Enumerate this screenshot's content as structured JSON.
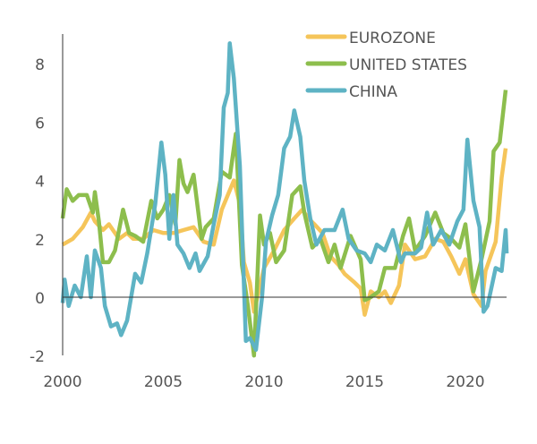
{
  "chart_data": {
    "type": "line",
    "title": "",
    "xlabel": "",
    "ylabel": "",
    "xlim": [
      2000,
      2022.5
    ],
    "ylim": [
      -2,
      9
    ],
    "x_ticks": [
      2000,
      2005,
      2010,
      2015,
      2020
    ],
    "x_tick_labels": [
      "2000",
      "2005",
      "2010",
      "2015",
      "2020"
    ],
    "y_ticks": [
      -2,
      0,
      2,
      4,
      6,
      8
    ],
    "y_tick_labels": [
      "-2",
      "0",
      "2",
      "4",
      "6",
      "8"
    ],
    "grid": false,
    "legend_position": "top-right",
    "series": [
      {
        "name": "EUROZONE",
        "color": "#F5C55A",
        "points": [
          [
            2000,
            1.8
          ],
          [
            2000.5,
            2.0
          ],
          [
            2001,
            2.4
          ],
          [
            2001.4,
            2.9
          ],
          [
            2001.6,
            2.6
          ],
          [
            2002,
            2.3
          ],
          [
            2002.3,
            2.5
          ],
          [
            2002.8,
            2.0
          ],
          [
            2003.2,
            2.2
          ],
          [
            2003.5,
            2.0
          ],
          [
            2004,
            2.0
          ],
          [
            2004.5,
            2.3
          ],
          [
            2005,
            2.2
          ],
          [
            2005.5,
            2.2
          ],
          [
            2006,
            2.3
          ],
          [
            2006.5,
            2.4
          ],
          [
            2007,
            1.9
          ],
          [
            2007.5,
            1.8
          ],
          [
            2007.9,
            3.0
          ],
          [
            2008.5,
            4.0
          ],
          [
            2008.8,
            3.2
          ],
          [
            2009,
            1.2
          ],
          [
            2009.3,
            0.5
          ],
          [
            2009.5,
            -0.5
          ],
          [
            2009.8,
            0.4
          ],
          [
            2010,
            1.0
          ],
          [
            2010.5,
            1.6
          ],
          [
            2011,
            2.3
          ],
          [
            2011.5,
            2.7
          ],
          [
            2011.9,
            3.0
          ],
          [
            2012.2,
            2.7
          ],
          [
            2012.5,
            2.5
          ],
          [
            2012.9,
            2.2
          ],
          [
            2013.3,
            1.4
          ],
          [
            2013.7,
            1.1
          ],
          [
            2014,
            0.8
          ],
          [
            2014.5,
            0.5
          ],
          [
            2014.8,
            0.3
          ],
          [
            2015,
            -0.6
          ],
          [
            2015.3,
            0.2
          ],
          [
            2015.7,
            0.0
          ],
          [
            2016,
            0.2
          ],
          [
            2016.3,
            -0.2
          ],
          [
            2016.7,
            0.4
          ],
          [
            2017,
            1.8
          ],
          [
            2017.5,
            1.3
          ],
          [
            2018,
            1.4
          ],
          [
            2018.5,
            2.0
          ],
          [
            2018.9,
            1.9
          ],
          [
            2019.3,
            1.4
          ],
          [
            2019.7,
            0.8
          ],
          [
            2020,
            1.3
          ],
          [
            2020.4,
            0.1
          ],
          [
            2020.8,
            -0.3
          ],
          [
            2021,
            0.9
          ],
          [
            2021.5,
            1.9
          ],
          [
            2021.8,
            4.1
          ],
          [
            2022,
            5.1
          ]
        ]
      },
      {
        "name": "UNITED STATES",
        "color": "#8DBE4D",
        "points": [
          [
            2000,
            2.7
          ],
          [
            2000.2,
            3.7
          ],
          [
            2000.5,
            3.3
          ],
          [
            2000.8,
            3.5
          ],
          [
            2001.2,
            3.5
          ],
          [
            2001.5,
            2.9
          ],
          [
            2001.6,
            3.6
          ],
          [
            2001.8,
            2.6
          ],
          [
            2002,
            1.2
          ],
          [
            2002.3,
            1.2
          ],
          [
            2002.6,
            1.6
          ],
          [
            2003,
            3.0
          ],
          [
            2003.3,
            2.2
          ],
          [
            2003.6,
            2.1
          ],
          [
            2004,
            1.9
          ],
          [
            2004.4,
            3.3
          ],
          [
            2004.7,
            2.7
          ],
          [
            2005,
            3.0
          ],
          [
            2005.3,
            3.5
          ],
          [
            2005.6,
            2.5
          ],
          [
            2005.8,
            4.7
          ],
          [
            2006,
            3.9
          ],
          [
            2006.2,
            3.6
          ],
          [
            2006.5,
            4.2
          ],
          [
            2006.9,
            2.0
          ],
          [
            2007.1,
            2.4
          ],
          [
            2007.5,
            2.7
          ],
          [
            2007.9,
            4.3
          ],
          [
            2008.3,
            4.1
          ],
          [
            2008.6,
            5.6
          ],
          [
            2008.9,
            1.1
          ],
          [
            2009.2,
            -0.3
          ],
          [
            2009.5,
            -2.0
          ],
          [
            2009.8,
            2.8
          ],
          [
            2010,
            1.8
          ],
          [
            2010.3,
            2.2
          ],
          [
            2010.6,
            1.2
          ],
          [
            2011,
            1.6
          ],
          [
            2011.4,
            3.5
          ],
          [
            2011.8,
            3.8
          ],
          [
            2012,
            2.9
          ],
          [
            2012.4,
            1.7
          ],
          [
            2012.8,
            2.0
          ],
          [
            2013.2,
            1.2
          ],
          [
            2013.5,
            1.8
          ],
          [
            2013.8,
            1.0
          ],
          [
            2014.3,
            2.1
          ],
          [
            2014.8,
            1.3
          ],
          [
            2015,
            -0.1
          ],
          [
            2015.3,
            0.0
          ],
          [
            2015.7,
            0.2
          ],
          [
            2016,
            1.0
          ],
          [
            2016.5,
            1.0
          ],
          [
            2016.9,
            2.1
          ],
          [
            2017.2,
            2.7
          ],
          [
            2017.5,
            1.6
          ],
          [
            2018,
            2.1
          ],
          [
            2018.5,
            2.9
          ],
          [
            2018.9,
            2.2
          ],
          [
            2019.3,
            2.0
          ],
          [
            2019.7,
            1.7
          ],
          [
            2020,
            2.5
          ],
          [
            2020.4,
            0.2
          ],
          [
            2020.8,
            1.3
          ],
          [
            2021.2,
            2.6
          ],
          [
            2021.4,
            5.0
          ],
          [
            2021.7,
            5.3
          ],
          [
            2022,
            7.1
          ]
        ]
      },
      {
        "name": "CHINA",
        "color": "#5EB3C4",
        "points": [
          [
            2000,
            -0.2
          ],
          [
            2000.1,
            0.6
          ],
          [
            2000.3,
            -0.3
          ],
          [
            2000.6,
            0.4
          ],
          [
            2000.9,
            0.0
          ],
          [
            2001.2,
            1.4
          ],
          [
            2001.4,
            0.0
          ],
          [
            2001.6,
            1.6
          ],
          [
            2001.9,
            1.0
          ],
          [
            2002.1,
            -0.3
          ],
          [
            2002.4,
            -1.0
          ],
          [
            2002.7,
            -0.9
          ],
          [
            2002.9,
            -1.3
          ],
          [
            2003.2,
            -0.8
          ],
          [
            2003.6,
            0.8
          ],
          [
            2003.9,
            0.5
          ],
          [
            2004.2,
            1.5
          ],
          [
            2004.6,
            3.2
          ],
          [
            2004.9,
            5.3
          ],
          [
            2005.1,
            4.2
          ],
          [
            2005.3,
            2.0
          ],
          [
            2005.5,
            3.5
          ],
          [
            2005.7,
            1.8
          ],
          [
            2006,
            1.5
          ],
          [
            2006.3,
            1.0
          ],
          [
            2006.6,
            1.5
          ],
          [
            2006.8,
            0.9
          ],
          [
            2007.2,
            1.4
          ],
          [
            2007.5,
            2.5
          ],
          [
            2007.8,
            3.5
          ],
          [
            2008,
            6.5
          ],
          [
            2008.2,
            7.0
          ],
          [
            2008.3,
            8.7
          ],
          [
            2008.5,
            7.5
          ],
          [
            2008.8,
            4.5
          ],
          [
            2009.1,
            -1.5
          ],
          [
            2009.3,
            -1.4
          ],
          [
            2009.6,
            -1.8
          ],
          [
            2009.9,
            0.0
          ],
          [
            2010.1,
            1.9
          ],
          [
            2010.4,
            2.8
          ],
          [
            2010.7,
            3.5
          ],
          [
            2011,
            5.1
          ],
          [
            2011.3,
            5.5
          ],
          [
            2011.5,
            6.4
          ],
          [
            2011.8,
            5.5
          ],
          [
            2012,
            4.0
          ],
          [
            2012.3,
            2.7
          ],
          [
            2012.6,
            1.8
          ],
          [
            2013,
            2.3
          ],
          [
            2013.5,
            2.3
          ],
          [
            2013.9,
            3.0
          ],
          [
            2014.2,
            2.0
          ],
          [
            2014.6,
            1.6
          ],
          [
            2015,
            1.5
          ],
          [
            2015.3,
            1.2
          ],
          [
            2015.6,
            1.8
          ],
          [
            2016,
            1.6
          ],
          [
            2016.4,
            2.3
          ],
          [
            2016.8,
            1.2
          ],
          [
            2017,
            1.5
          ],
          [
            2017.5,
            1.5
          ],
          [
            2017.8,
            1.7
          ],
          [
            2018.1,
            2.9
          ],
          [
            2018.4,
            1.8
          ],
          [
            2018.8,
            2.3
          ],
          [
            2019.2,
            1.8
          ],
          [
            2019.6,
            2.6
          ],
          [
            2019.9,
            3.0
          ],
          [
            2020.1,
            5.4
          ],
          [
            2020.4,
            3.3
          ],
          [
            2020.7,
            2.4
          ],
          [
            2020.9,
            -0.5
          ],
          [
            2021.1,
            -0.3
          ],
          [
            2021.5,
            1.0
          ],
          [
            2021.8,
            0.9
          ],
          [
            2022,
            2.3
          ],
          [
            2022.05,
            1.5
          ]
        ]
      }
    ]
  }
}
